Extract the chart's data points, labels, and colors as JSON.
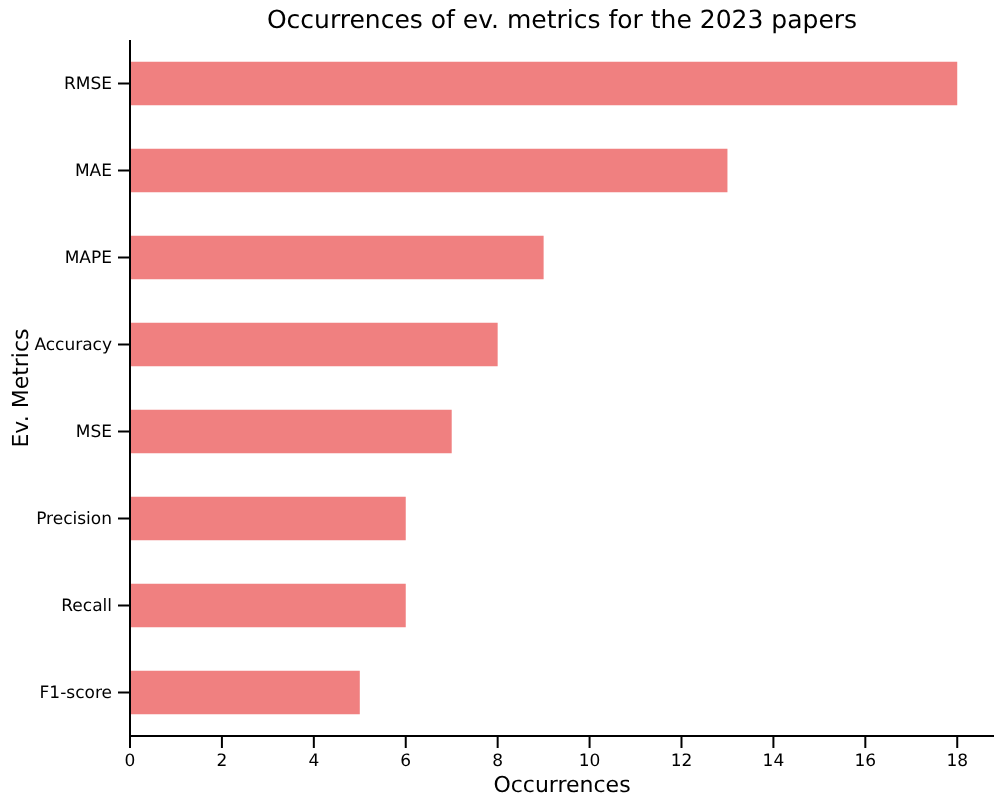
{
  "chart_data": {
    "type": "bar",
    "orientation": "horizontal",
    "title": "Occurrences of ev. metrics for the 2023 papers",
    "xlabel": "Occurrences",
    "ylabel": "Ev. Metrics",
    "categories": [
      "RMSE",
      "MAE",
      "MAPE",
      "Accuracy",
      "MSE",
      "Precision",
      "Recall",
      "F1-score"
    ],
    "values": [
      18,
      13,
      9,
      8,
      7,
      6,
      6,
      5
    ],
    "color": "#f08080",
    "xlim": [
      0,
      18.8
    ],
    "xticks": [
      0,
      2,
      4,
      6,
      8,
      10,
      12,
      14,
      16,
      18
    ],
    "grid": false
  }
}
